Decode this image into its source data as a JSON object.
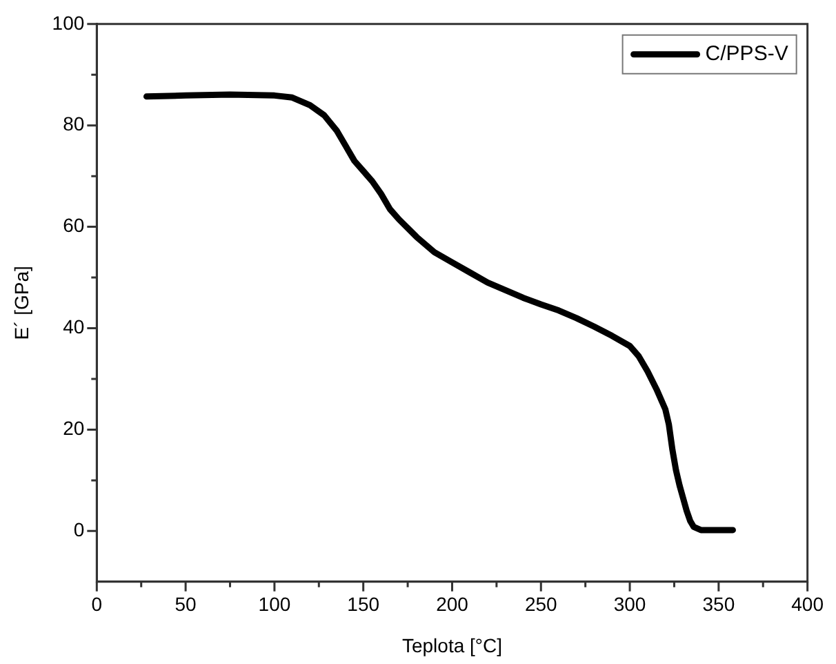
{
  "chart_data": {
    "type": "line",
    "xlabel": "Teplota [°C]",
    "ylabel": "E´ [GPa]",
    "xlim": [
      0,
      400
    ],
    "xticks": [
      0,
      50,
      100,
      150,
      200,
      250,
      300,
      350,
      400
    ],
    "ylim": [
      -10,
      100
    ],
    "yticks": [
      0,
      20,
      40,
      60,
      80,
      100
    ],
    "grid": false,
    "legend": "top right",
    "marker": "none",
    "line_style": "solid",
    "series": [
      {
        "name": "C/PPS-V",
        "color": "#000000",
        "x": [
          28,
          50,
          75,
          100,
          110,
          120,
          128,
          135,
          140,
          145,
          150,
          155,
          160,
          165,
          170,
          180,
          190,
          200,
          210,
          220,
          230,
          240,
          250,
          260,
          270,
          280,
          290,
          300,
          305,
          310,
          315,
          320,
          322,
          324,
          326,
          328,
          330,
          332,
          334,
          336,
          340,
          350,
          358
        ],
        "values": [
          85.7,
          85.9,
          86.1,
          85.9,
          85.5,
          84,
          82,
          79,
          76,
          73,
          71,
          69,
          66.5,
          63.5,
          61.5,
          58,
          55,
          53,
          51,
          49,
          47.5,
          46,
          44.7,
          43.5,
          42,
          40.3,
          38.5,
          36.5,
          34.5,
          31.5,
          28,
          24,
          21,
          16,
          12,
          9,
          6.5,
          4,
          2,
          0.8,
          0.2,
          0.2,
          0.2
        ]
      }
    ]
  }
}
